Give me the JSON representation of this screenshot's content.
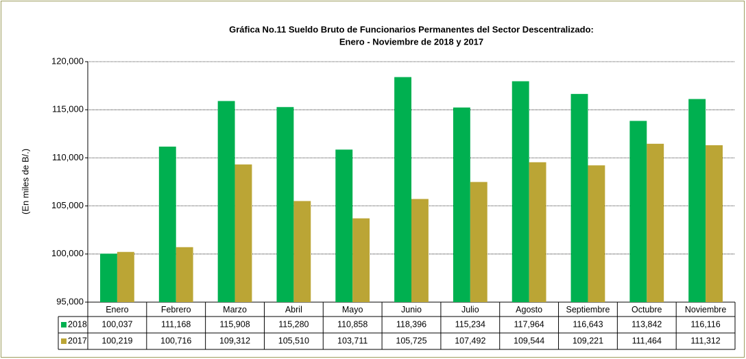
{
  "chart_data": {
    "type": "bar",
    "title": "Gráfica No.11 Sueldo Bruto de Funcionarios Permanentes del Sector Descentralizado:",
    "subtitle": "Enero - Noviembre de 2018 y 2017",
    "y_label": "(En miles de B/.)",
    "categories": [
      "Enero",
      "Febrero",
      "Marzo",
      "Abril",
      "Mayo",
      "Junio",
      "Julio",
      "Agosto",
      "Septiembre",
      "Octubre",
      "Noviembre"
    ],
    "series": [
      {
        "name": "2018",
        "color": "#00b050",
        "values": [
          100037,
          111168,
          115908,
          115280,
          110858,
          118396,
          115234,
          117964,
          116643,
          113842,
          116116
        ],
        "value_labels": [
          "100,037",
          "111,168",
          "115,908",
          "115,280",
          "110,858",
          "118,396",
          "115,234",
          "117,964",
          "116,643",
          "113,842",
          "116,116"
        ]
      },
      {
        "name": "2017",
        "color": "#bba535",
        "values": [
          100219,
          100716,
          109312,
          105510,
          103711,
          105725,
          107492,
          109544,
          109221,
          111464,
          111312
        ],
        "value_labels": [
          "100,219",
          "100,716",
          "109,312",
          "105,510",
          "103,711",
          "105,725",
          "107,492",
          "109,544",
          "109,221",
          "111,464",
          "111,312"
        ]
      }
    ],
    "ylim": [
      95000,
      120000
    ],
    "yticks": [
      {
        "value": 95000,
        "label": "95,000"
      },
      {
        "value": 100000,
        "label": "100,000"
      },
      {
        "value": 105000,
        "label": "105,000"
      },
      {
        "value": 110000,
        "label": "110,000"
      },
      {
        "value": 115000,
        "label": "115,000"
      },
      {
        "value": 120000,
        "label": "120,000"
      }
    ],
    "grid": true
  }
}
